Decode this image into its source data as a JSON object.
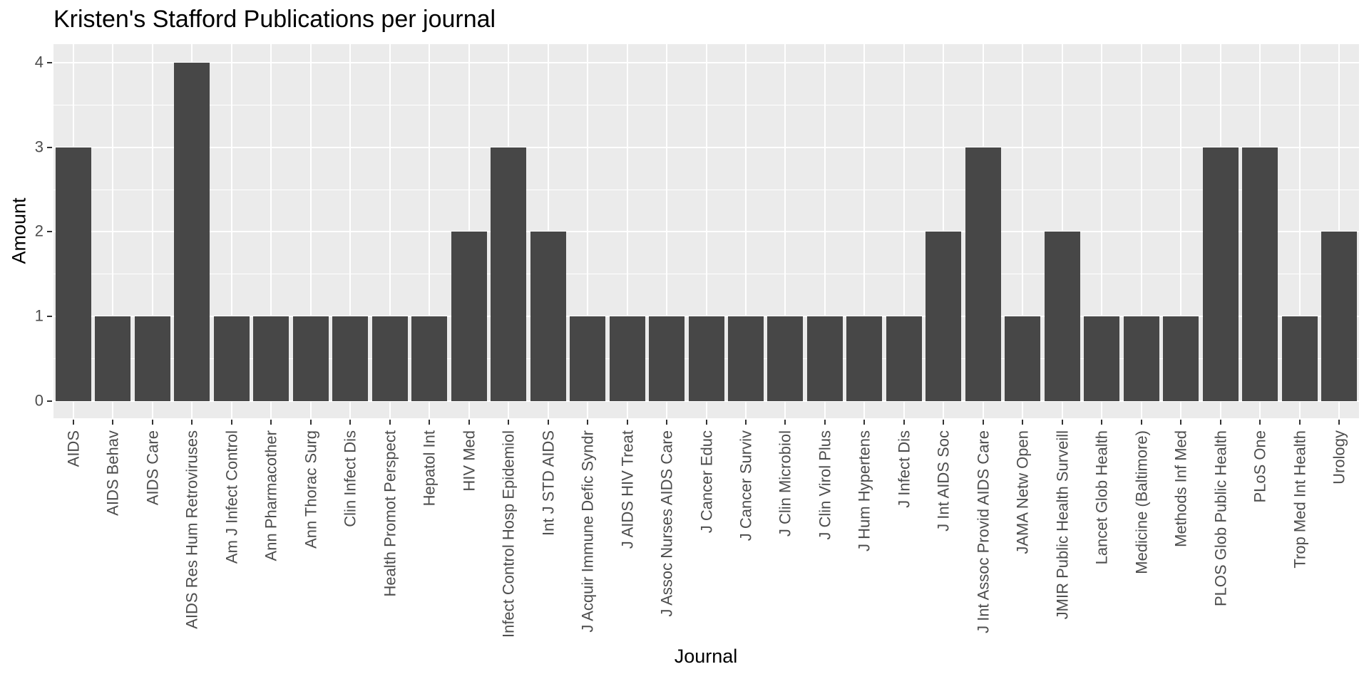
{
  "chart_data": {
    "type": "bar",
    "title": "Kristen's Stafford Publications per journal",
    "xlabel": "Journal",
    "ylabel": "Amount",
    "categories": [
      "AIDS",
      "AIDS Behav",
      "AIDS Care",
      "AIDS Res Hum Retroviruses",
      "Am J Infect Control",
      "Ann Pharmacother",
      "Ann Thorac Surg",
      "Clin Infect Dis",
      "Health Promot Perspect",
      "Hepatol Int",
      "HIV Med",
      "Infect Control Hosp Epidemiol",
      "Int J STD AIDS",
      "J Acquir Immune Defic Syndr",
      "J AIDS HIV Treat",
      "J Assoc Nurses AIDS Care",
      "J Cancer Educ",
      "J Cancer Surviv",
      "J Clin Microbiol",
      "J Clin Virol Plus",
      "J Hum Hypertens",
      "J Infect Dis",
      "J Int AIDS Soc",
      "J Int Assoc Provid AIDS Care",
      "JAMA Netw Open",
      "JMIR Public Health Surveill",
      "Lancet Glob Health",
      "Medicine (Baltimore)",
      "Methods Inf Med",
      "PLOS Glob Public Health",
      "PLoS One",
      "Trop Med Int Health",
      "Urology"
    ],
    "values": [
      3,
      1,
      1,
      4,
      1,
      1,
      1,
      1,
      1,
      1,
      2,
      3,
      2,
      1,
      1,
      1,
      1,
      1,
      1,
      1,
      1,
      1,
      2,
      3,
      1,
      2,
      1,
      1,
      1,
      3,
      3,
      1,
      2
    ],
    "y_ticks": [
      0,
      1,
      2,
      3,
      4
    ],
    "y_minor_ticks": [
      0.5,
      1.5,
      2.5,
      3.5
    ],
    "ylim": [
      -0.2,
      4.2
    ],
    "legend": "none",
    "grid": "major-and-minor-horizontal, major-vertical",
    "style": {
      "bar_color": "#474747",
      "panel_background": "#EBEBEB",
      "grid_color": "#FFFFFF",
      "axis_text_color": "#4D4D4D",
      "tick_mark_color": "#333333",
      "title_color": "#000000",
      "page_background": "#FFFFFF"
    }
  }
}
